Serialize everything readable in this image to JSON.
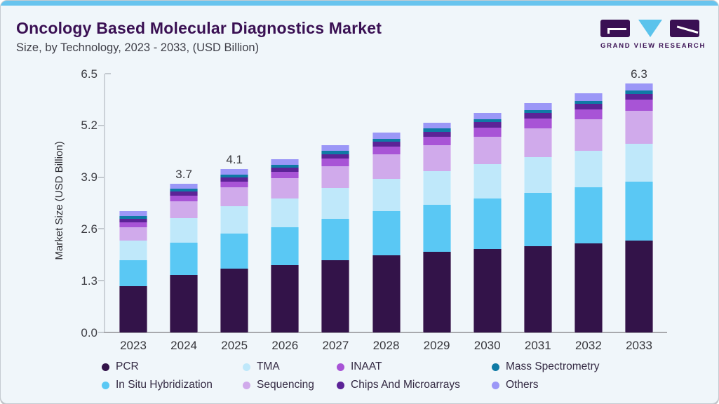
{
  "header": {
    "title": "Oncology Based Molecular Diagnostics Market",
    "subtitle": "Size, by Technology, 2023 - 2033, (USD Billion)"
  },
  "logo": {
    "text": "GRAND VIEW RESEARCH",
    "mark_color": "#3a1053",
    "triangle_color": "#5bc3ec"
  },
  "accent_color": "#68c4ee",
  "background_color": "#f0f6fa",
  "chart_data": {
    "type": "bar",
    "stacked": true,
    "title": "Oncology Based Molecular Diagnostics Market Size, by Technology, 2023 - 2033, (USD Billion)",
    "xlabel": "",
    "ylabel": "Market Size (USD Billion)",
    "ylim": [
      0,
      6.5
    ],
    "yticks": [
      "0.0",
      "1.3",
      "2.6",
      "3.9",
      "5.2",
      "6.5"
    ],
    "grid": false,
    "legend_position": "bottom",
    "categories": [
      "2023",
      "2024",
      "2025",
      "2026",
      "2027",
      "2028",
      "2029",
      "2030",
      "2031",
      "2032",
      "2033"
    ],
    "series": [
      {
        "name": "PCR",
        "color": "#331349",
        "values": [
          1.17,
          1.45,
          1.6,
          1.69,
          1.81,
          1.93,
          2.02,
          2.1,
          2.17,
          2.24,
          2.31
        ]
      },
      {
        "name": "In Situ Hybridization",
        "color": "#5ac8f4",
        "values": [
          0.64,
          0.8,
          0.89,
          0.95,
          1.04,
          1.12,
          1.19,
          1.26,
          1.33,
          1.4,
          1.47
        ]
      },
      {
        "name": "TMA",
        "color": "#bfe8fa",
        "values": [
          0.5,
          0.62,
          0.68,
          0.72,
          0.77,
          0.81,
          0.84,
          0.87,
          0.9,
          0.93,
          0.96
        ]
      },
      {
        "name": "Sequencing",
        "color": "#d0aaeb",
        "values": [
          0.34,
          0.43,
          0.47,
          0.51,
          0.56,
          0.61,
          0.65,
          0.69,
          0.73,
          0.78,
          0.83
        ]
      },
      {
        "name": "INAAT",
        "color": "#a854d6",
        "values": [
          0.11,
          0.13,
          0.15,
          0.16,
          0.18,
          0.2,
          0.22,
          0.23,
          0.25,
          0.26,
          0.28
        ]
      },
      {
        "name": "Chips And Microarrays",
        "color": "#5c2397",
        "values": [
          0.1,
          0.11,
          0.11,
          0.11,
          0.12,
          0.12,
          0.12,
          0.13,
          0.13,
          0.13,
          0.14
        ]
      },
      {
        "name": "Mass Spectrometry",
        "color": "#0f7aa5",
        "values": [
          0.07,
          0.07,
          0.07,
          0.07,
          0.08,
          0.08,
          0.08,
          0.08,
          0.08,
          0.08,
          0.08
        ]
      },
      {
        "name": "Others",
        "color": "#9b97f7",
        "values": [
          0.12,
          0.13,
          0.13,
          0.14,
          0.14,
          0.15,
          0.15,
          0.16,
          0.17,
          0.18,
          0.19
        ]
      }
    ],
    "totals_approx": [
      3.0,
      3.7,
      4.1,
      4.35,
      4.7,
      5.0,
      5.25,
      5.5,
      5.75,
      6.0,
      6.3
    ],
    "value_labels": {
      "2024": "3.7",
      "2025": "4.1",
      "2033": "6.3"
    },
    "legend_rows": [
      [
        "PCR",
        "TMA",
        "INAAT",
        "Mass Spectrometry"
      ],
      [
        "In Situ Hybridization",
        "Sequencing",
        "Chips And Microarrays",
        "Others"
      ]
    ]
  }
}
